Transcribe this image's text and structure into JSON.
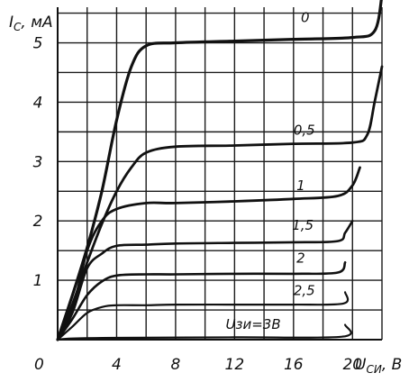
{
  "chart_data": {
    "type": "line",
    "title": "",
    "ylabel_main": "I",
    "ylabel_sub": "С",
    "ylabel_unit": ", мА",
    "xlabel_main": "U",
    "xlabel_sub": "СИ",
    "xlabel_unit": ", В",
    "origin_label": "0",
    "xlim": [
      0,
      22
    ],
    "ylim": [
      0,
      5.6
    ],
    "x_ticks": [
      4,
      8,
      12,
      16,
      20
    ],
    "y_ticks": [
      1,
      2,
      3,
      4,
      5
    ],
    "grid": true,
    "series": [
      {
        "name": "0",
        "points": [
          [
            0,
            0
          ],
          [
            1,
            0.75
          ],
          [
            2,
            1.55
          ],
          [
            3,
            2.5
          ],
          [
            4,
            3.7
          ],
          [
            5,
            4.6
          ],
          [
            6,
            4.95
          ],
          [
            8,
            5.0
          ],
          [
            12,
            5.03
          ],
          [
            16,
            5.06
          ],
          [
            20,
            5.09
          ],
          [
            21.5,
            5.2
          ],
          [
            22,
            5.8
          ]
        ]
      },
      {
        "name": "0,5",
        "points": [
          [
            0,
            0
          ],
          [
            1,
            0.6
          ],
          [
            2,
            1.3
          ],
          [
            3,
            1.95
          ],
          [
            4,
            2.5
          ],
          [
            5,
            2.9
          ],
          [
            6,
            3.15
          ],
          [
            8,
            3.25
          ],
          [
            12,
            3.27
          ],
          [
            16,
            3.3
          ],
          [
            20,
            3.32
          ],
          [
            21,
            3.45
          ],
          [
            21.5,
            4.0
          ],
          [
            22,
            4.6
          ]
        ]
      },
      {
        "name": "1",
        "points": [
          [
            0,
            0
          ],
          [
            1,
            0.5
          ],
          [
            2,
            1.5
          ],
          [
            3,
            2.0
          ],
          [
            4,
            2.2
          ],
          [
            6,
            2.3
          ],
          [
            8,
            2.3
          ],
          [
            12,
            2.33
          ],
          [
            16,
            2.37
          ],
          [
            19,
            2.42
          ],
          [
            20,
            2.6
          ],
          [
            20.5,
            2.9
          ]
        ]
      },
      {
        "name": "1,5",
        "points": [
          [
            0,
            0
          ],
          [
            1,
            0.45
          ],
          [
            2,
            1.2
          ],
          [
            3,
            1.45
          ],
          [
            4,
            1.58
          ],
          [
            6,
            1.6
          ],
          [
            8,
            1.62
          ],
          [
            12,
            1.63
          ],
          [
            16,
            1.64
          ],
          [
            19,
            1.66
          ],
          [
            19.5,
            1.8
          ],
          [
            20,
            2.0
          ]
        ]
      },
      {
        "name": "2",
        "points": [
          [
            0,
            0
          ],
          [
            1,
            0.35
          ],
          [
            2,
            0.75
          ],
          [
            3,
            0.98
          ],
          [
            4,
            1.08
          ],
          [
            6,
            1.1
          ],
          [
            8,
            1.1
          ],
          [
            12,
            1.11
          ],
          [
            16,
            1.11
          ],
          [
            19,
            1.13
          ],
          [
            19.5,
            1.3
          ]
        ]
      },
      {
        "name": "2,5",
        "points": [
          [
            0,
            0
          ],
          [
            1,
            0.22
          ],
          [
            2,
            0.45
          ],
          [
            3,
            0.55
          ],
          [
            4,
            0.58
          ],
          [
            6,
            0.58
          ],
          [
            8,
            0.59
          ],
          [
            12,
            0.59
          ],
          [
            16,
            0.59
          ],
          [
            19.4,
            0.61
          ],
          [
            19.5,
            0.8
          ]
        ]
      },
      {
        "name": "Uзи=3В",
        "points": [
          [
            0,
            0
          ],
          [
            1,
            0.02
          ],
          [
            4,
            0.03
          ],
          [
            12,
            0.04
          ],
          [
            19.3,
            0.05
          ],
          [
            19.5,
            0.25
          ]
        ]
      }
    ],
    "series_labels": [
      "0",
      "0,5",
      "1",
      "1,5",
      "2",
      "2,5",
      "Uзи=3В"
    ]
  }
}
